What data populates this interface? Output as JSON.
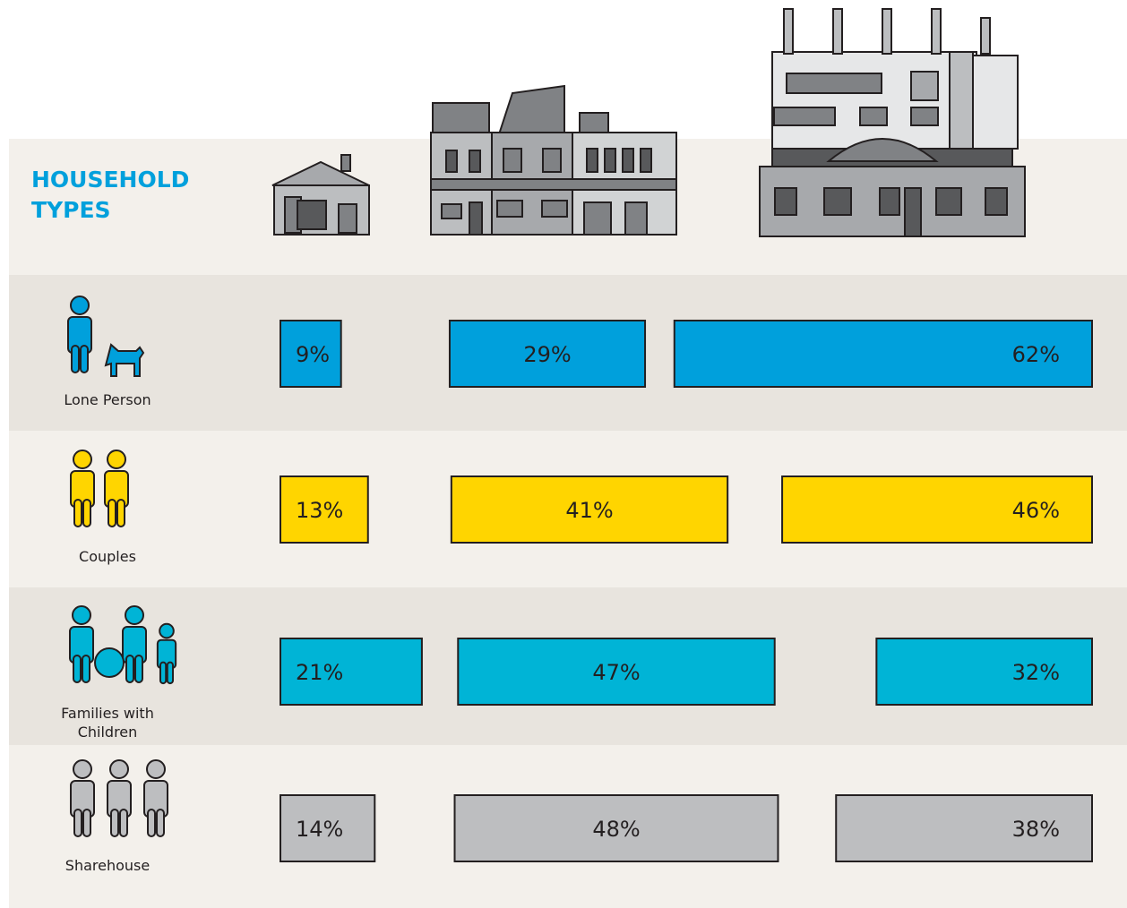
{
  "chart_data": {
    "type": "bar",
    "title": "HOUSEHOLD TYPES",
    "categories": [
      "Lone Person",
      "Couples",
      "Families with Children",
      "Sharehouse"
    ],
    "colors": [
      "#00a0dc",
      "#ffd500",
      "#00b4d6",
      "#bdbec0"
    ],
    "series": [
      {
        "values": [
          9,
          13,
          21,
          14
        ],
        "value_labels": [
          "9%",
          "13%",
          "21%",
          "14%"
        ]
      },
      {
        "values": [
          29,
          41,
          47,
          48
        ],
        "value_labels": [
          "29%",
          "41%",
          "47%",
          "48%"
        ]
      },
      {
        "values": [
          62,
          46,
          32,
          38
        ],
        "value_labels": [
          "62%",
          "46%",
          "32%",
          "38%"
        ]
      }
    ]
  }
}
